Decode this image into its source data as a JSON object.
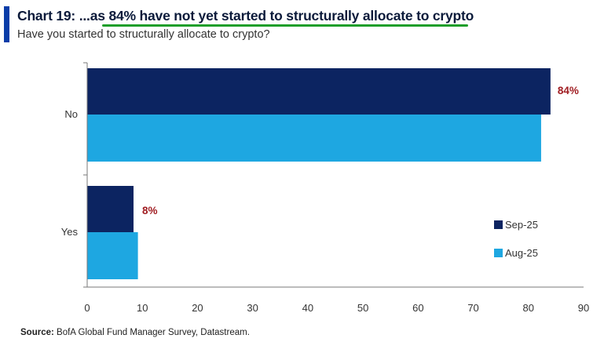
{
  "header": {
    "title_prefix": "Chart 19: ...as ",
    "title_highlight": "84% have not yet started to structurally allocate to crypto",
    "subtitle": "Have you started to structurally allocate to crypto?"
  },
  "footer": {
    "source_label": "Source:",
    "source_text": " BofA Global Fund Manager Survey, Datastream."
  },
  "chart_data": {
    "type": "bar",
    "orientation": "horizontal",
    "title": "Chart 19: ...as 84% have not yet started to structurally allocate to crypto",
    "subtitle": "Have you started to structurally allocate to crypto?",
    "categories": [
      "No",
      "Yes"
    ],
    "series": [
      {
        "name": "Sep-25",
        "values": [
          84,
          8.4
        ],
        "color": "#0c2461"
      },
      {
        "name": "Aug-25",
        "values": [
          82.3,
          9.2
        ],
        "color": "#1ea7e1"
      }
    ],
    "data_labels": [
      {
        "category": "No",
        "series": "Sep-25",
        "text": "84%"
      },
      {
        "category": "Yes",
        "series": "Sep-25",
        "text": "8%"
      }
    ],
    "x_ticks": [
      "0",
      "10",
      "20",
      "30",
      "40",
      "50",
      "60",
      "70",
      "80",
      "90"
    ],
    "xlim": [
      0,
      90
    ],
    "grid": false,
    "legend_position": "bottom-right",
    "label_color": "#a01d22"
  }
}
